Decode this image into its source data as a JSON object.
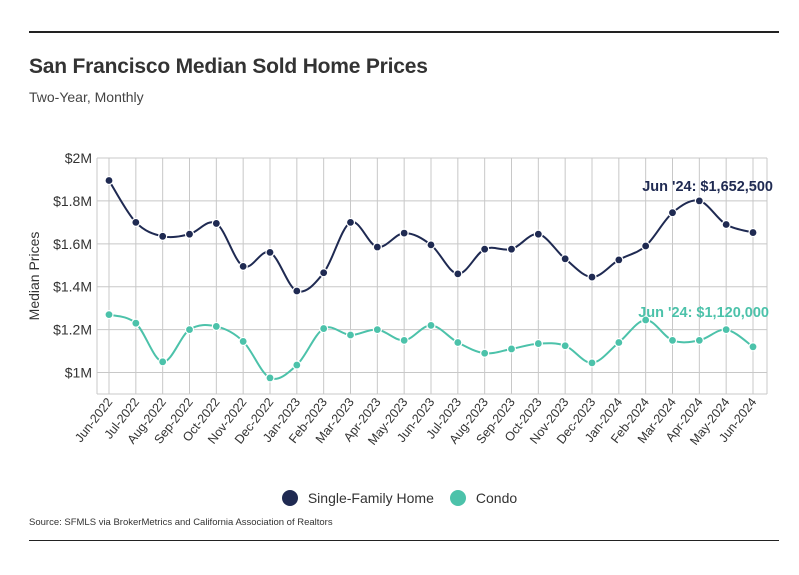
{
  "header": {
    "title": "San Francisco Median Sold Home Prices",
    "subtitle": "Two-Year, Monthly"
  },
  "footer": {
    "source": "Source:  SFMLS via BrokerMetrics and California Association of Realtors"
  },
  "colors": {
    "single_family": "#1f2a52",
    "condo": "#4cc2aa",
    "grid": "#c8c8c8"
  },
  "chart_data": {
    "type": "line",
    "title": "San Francisco Median Sold Home Prices",
    "subtitle": "Two-Year, Monthly",
    "xlabel": "",
    "ylabel": "Median Prices",
    "ylim": [
      900000,
      2000000
    ],
    "yticks": [
      1000000,
      1200000,
      1400000,
      1600000,
      1800000,
      2000000
    ],
    "ytick_labels": [
      "$1M",
      "$1.2M",
      "$1.4M",
      "$1.6M",
      "$1.8M",
      "$2M"
    ],
    "grid": true,
    "legend_position": "bottom-center",
    "categories": [
      "Jun-2022",
      "Jul-2022",
      "Aug-2022",
      "Sep-2022",
      "Oct-2022",
      "Nov-2022",
      "Dec-2022",
      "Jan-2023",
      "Feb-2023",
      "Mar-2023",
      "Apr-2023",
      "May-2023",
      "Jun-2023",
      "Jul-2023",
      "Aug-2023",
      "Sep-2023",
      "Oct-2023",
      "Nov-2023",
      "Dec-2023",
      "Jan-2024",
      "Feb-2024",
      "Mar-2024",
      "Apr-2024",
      "May-2024",
      "Jun-2024"
    ],
    "series": [
      {
        "name": "Single-Family Home",
        "color": "#1f2a52",
        "values": [
          1895000,
          1700000,
          1635000,
          1645000,
          1695000,
          1495000,
          1560000,
          1380000,
          1465000,
          1700000,
          1585000,
          1650000,
          1595000,
          1460000,
          1575000,
          1575000,
          1645000,
          1530000,
          1445000,
          1525000,
          1590000,
          1745000,
          1800000,
          1690000,
          1652500
        ],
        "annotation": "Jun '24: $1,652,500"
      },
      {
        "name": "Condo",
        "color": "#4cc2aa",
        "values": [
          1270000,
          1230000,
          1050000,
          1200000,
          1215000,
          1145000,
          975000,
          1035000,
          1205000,
          1175000,
          1200000,
          1150000,
          1220000,
          1140000,
          1090000,
          1110000,
          1135000,
          1125000,
          1045000,
          1140000,
          1245000,
          1150000,
          1150000,
          1200000,
          1120000
        ],
        "annotation": "Jun '24: $1,120,000"
      }
    ]
  }
}
